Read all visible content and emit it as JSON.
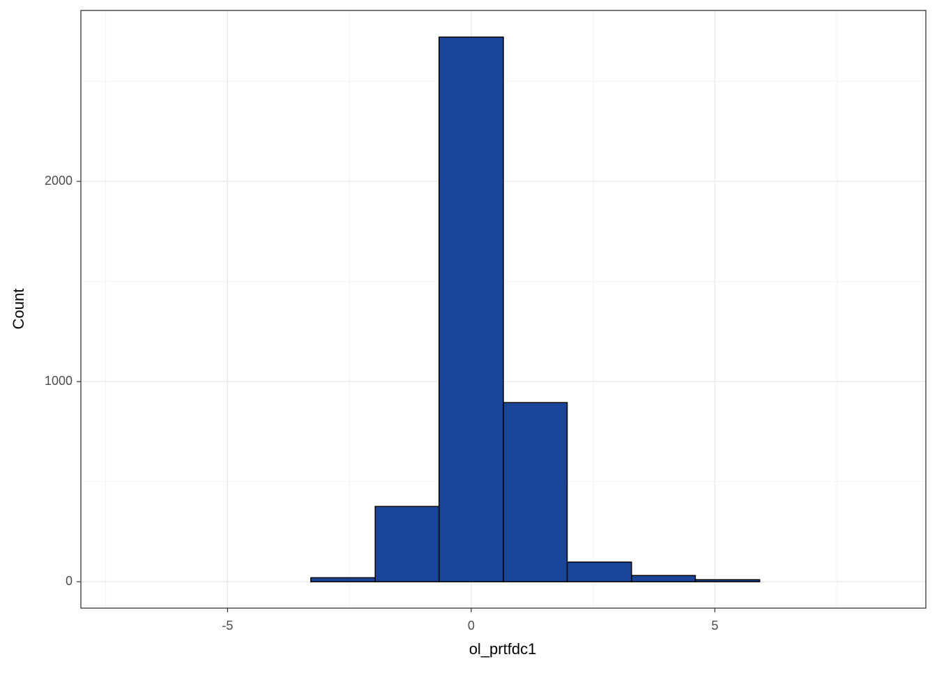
{
  "chart_data": {
    "type": "histogram",
    "x_label": "ol_prtfdc1",
    "y_label": "Count",
    "bins": [
      -7.24,
      -5.92,
      -4.6,
      -3.29,
      -1.97,
      -0.66,
      0.66,
      1.97,
      3.29,
      4.6,
      5.92,
      7.24,
      8.55
    ],
    "values": [
      0,
      0,
      0,
      20,
      376,
      2721,
      895,
      98,
      31,
      10,
      0,
      0
    ],
    "color": "#1a4599",
    "xlim": [
      -8.01,
      9.33
    ],
    "ylim": [
      -132,
      2854
    ],
    "xticks": [
      -5,
      0,
      5
    ],
    "yticks": [
      0,
      1000,
      2000
    ],
    "x_minor_ticks": [
      -7.5,
      -2.5,
      2.5,
      7.5
    ],
    "y_minor_ticks": [
      500,
      1500,
      2500
    ],
    "grid": true
  }
}
